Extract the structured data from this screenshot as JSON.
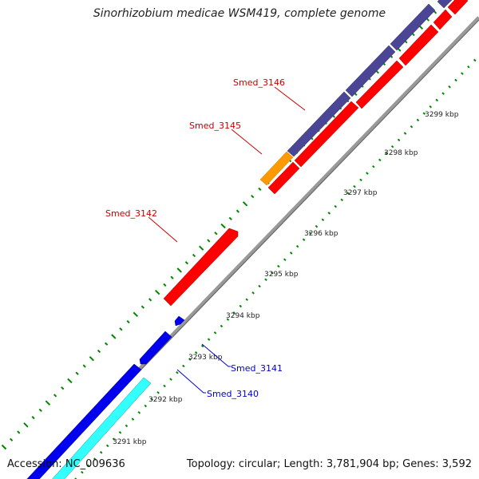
{
  "title": "Sinorhizobium medicae WSM419, complete genome",
  "footer": {
    "accession": "Accession: NC_009636",
    "topology": "Topology: circular; Length: 3,781,904 bp; Genes: 3,592"
  },
  "ticks": [
    "3291 kbp",
    "3292 kbp",
    "3293 kbp",
    "3294 kbp",
    "3295 kbp",
    "3296 kbp",
    "3297 kbp",
    "3298 kbp",
    "3299 kbp"
  ],
  "genes": {
    "smed_3146": "Smed_3146",
    "smed_3145": "Smed_3145",
    "smed_3142": "Smed_3142",
    "smed_3141": "Smed_3141",
    "smed_3140": "Smed_3140"
  },
  "colors": {
    "forward_cds": "#ff0000",
    "reverse_cds": "#0000ee",
    "rrna_purple": "#4b4595",
    "orange_feature": "#ff9900",
    "cyan_feature": "#33ffff",
    "backbone": "#999999",
    "gc_skew": "#008800",
    "label_red": "#cc0000",
    "label_blue": "#0000cc"
  }
}
